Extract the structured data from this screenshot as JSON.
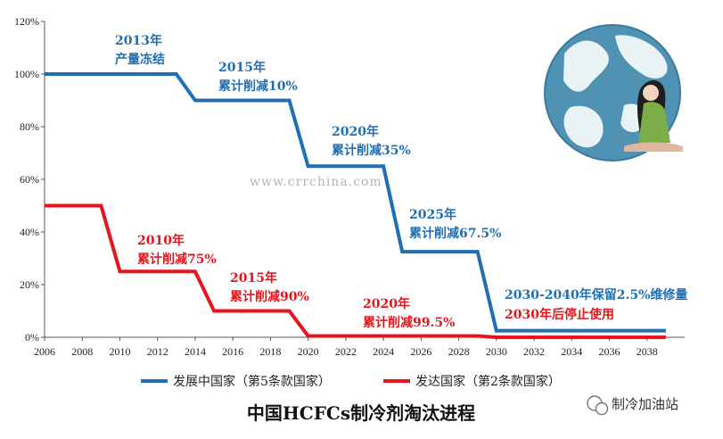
{
  "chart_data": {
    "type": "line",
    "title": "中国HCFCs制冷剂淘汰进程",
    "xlim": [
      2006,
      2040
    ],
    "ylim": [
      0,
      120
    ],
    "x_ticks": [
      "2006",
      "2008",
      "2010",
      "2012",
      "2014",
      "2016",
      "2018",
      "2020",
      "2022",
      "2024",
      "2026",
      "2028",
      "2030",
      "2032",
      "2034",
      "2036",
      "2038"
    ],
    "y_ticks": [
      "0%",
      "20%",
      "40%",
      "60%",
      "80%",
      "100%",
      "120%"
    ],
    "series": [
      {
        "name": "发展中国家（第5条款国家）",
        "color": "#1f6fb4",
        "x": [
          2006,
          2013,
          2014,
          2019,
          2020,
          2024,
          2025,
          2029,
          2030,
          2039
        ],
        "y": [
          100,
          100,
          90,
          90,
          65,
          65,
          32.5,
          32.5,
          2.5,
          2.5
        ]
      },
      {
        "name": "发达国家（第2条款国家）",
        "color": "#e8141b",
        "x": [
          2006,
          2009,
          2010,
          2014,
          2015,
          2019,
          2020,
          2029,
          2030,
          2039
        ],
        "y": [
          50,
          50,
          25,
          25,
          10,
          10,
          0.5,
          0.5,
          0,
          0
        ]
      }
    ],
    "annotations": [
      {
        "series": 0,
        "lines": [
          "2013年",
          "产量冻结"
        ]
      },
      {
        "series": 0,
        "lines": [
          "2015年",
          "累计削减10%"
        ]
      },
      {
        "series": 0,
        "lines": [
          "2020年",
          "累计削减35%"
        ]
      },
      {
        "series": 0,
        "lines": [
          "2025年",
          "累计削减67.5%"
        ]
      },
      {
        "series": 0,
        "lines": [
          "2030-2040年保留2.5%维修量"
        ]
      },
      {
        "series": 1,
        "lines": [
          "2010年",
          "累计削减75%"
        ]
      },
      {
        "series": 1,
        "lines": [
          "2015年",
          "累计削减90%"
        ]
      },
      {
        "series": 1,
        "lines": [
          "2020年",
          "累计削减99.5%"
        ]
      },
      {
        "series": 1,
        "lines": [
          "2030年后停止使用"
        ]
      }
    ],
    "grid": false,
    "legend_position": "bottom"
  },
  "watermark": "www.crrchina.com",
  "badge": {
    "text": "制冷加油站",
    "icon": "wechat-icon"
  }
}
